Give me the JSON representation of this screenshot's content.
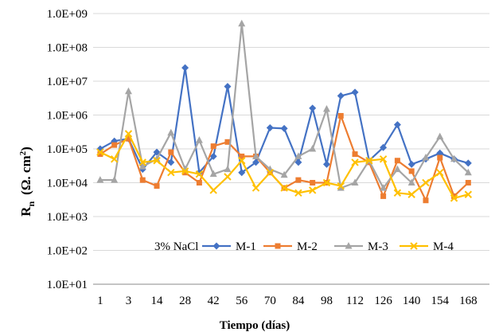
{
  "chart_data": {
    "type": "line",
    "yscale": "log",
    "ylim": [
      10.0,
      1000000000.0
    ],
    "yticks": [
      "1.0E+01",
      "1.0E+02",
      "1.0E+03",
      "1.0E+04",
      "1.0E+05",
      "1.0E+06",
      "1.0E+07",
      "1.0E+08",
      "1.0E+09"
    ],
    "xticks": [
      "1",
      "3",
      "14",
      "28",
      "42",
      "56",
      "70",
      "84",
      "98",
      "112",
      "126",
      "140",
      "154",
      "168"
    ],
    "xlabel": "Tiempo (días)",
    "ylabel": {
      "main": "R",
      "sub": "n",
      "unit": "(Ω. cm",
      "sup": "2",
      "close": ")"
    },
    "legend_title": "3% NaCl",
    "n_points": 28,
    "series": [
      {
        "name": "M-1",
        "color": "#4472C4",
        "marker": "diamond",
        "values": [
          100000,
          170000,
          200000,
          25000,
          80000,
          40000,
          25000000,
          20000,
          60000,
          7000000,
          20000,
          40000,
          420000,
          400000,
          40000,
          1600000,
          35000,
          3700000,
          4700000,
          45000,
          110000,
          520000,
          35000,
          50000,
          75000,
          50000,
          38000,
          null
        ]
      },
      {
        "name": "M-2",
        "color": "#ED7D31",
        "marker": "square",
        "values": [
          70000,
          130000,
          200000,
          12000,
          8000,
          80000,
          20000,
          10000,
          120000,
          160000,
          60000,
          60000,
          20000,
          7000,
          12000,
          10000,
          10000,
          950000,
          70000,
          40000,
          4000,
          45000,
          22000,
          3000,
          55000,
          4000,
          10000,
          null
        ]
      },
      {
        "name": "M-3",
        "color": "#A5A5A5",
        "marker": "triangle",
        "values": [
          12000,
          12000,
          5000000,
          30000,
          50000,
          300000,
          25000,
          180000,
          18000,
          25000,
          500000000,
          60000,
          25000,
          17000,
          60000,
          100000,
          1500000,
          7000,
          10000,
          45000,
          7000,
          25000,
          10000,
          55000,
          230000,
          50000,
          20000,
          null
        ]
      },
      {
        "name": "M-4",
        "color": "#FFC000",
        "marker": "x",
        "values": [
          80000,
          50000,
          280000,
          40000,
          45000,
          20000,
          22000,
          18000,
          6000,
          15000,
          45000,
          7000,
          20000,
          7000,
          5000,
          6000,
          10000,
          8000,
          40000,
          45000,
          50000,
          5000,
          4500,
          10000,
          20000,
          3500,
          4500,
          null
        ]
      }
    ]
  }
}
